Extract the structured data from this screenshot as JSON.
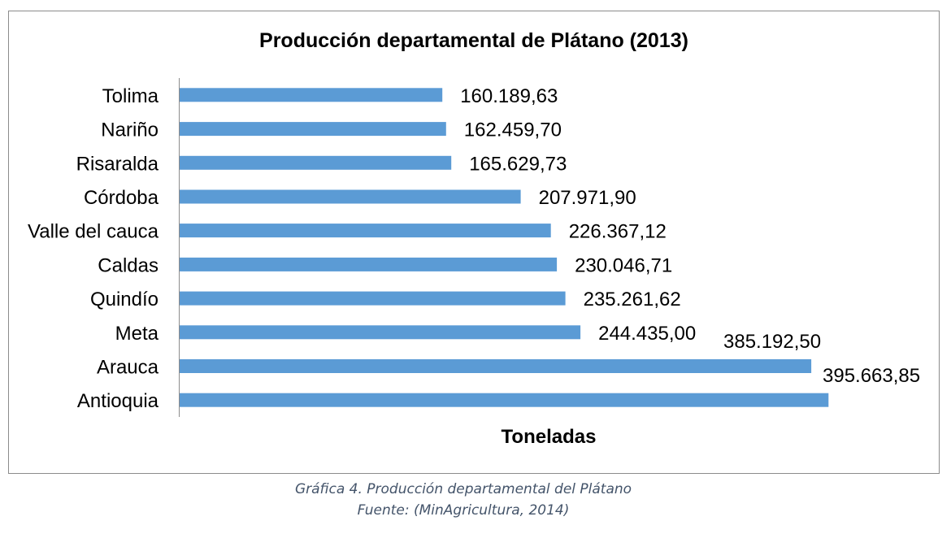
{
  "chart_data": {
    "type": "bar",
    "orientation": "horizontal",
    "title": "Producción departamental de Plátano (2013)",
    "xlabel": "Toneladas",
    "ylabel": "",
    "categories": [
      "Tolima",
      "Nariño",
      "Risaralda",
      "Córdoba",
      "Valle del cauca",
      "Caldas",
      "Quindío",
      "Meta",
      "Arauca",
      "Antioquia"
    ],
    "values": [
      160189.63,
      162459.7,
      165629.73,
      207971.9,
      226367.12,
      230046.71,
      235261.62,
      244435.0,
      385192.5,
      395663.85
    ],
    "data_labels": [
      "160.189,63",
      "162.459,70",
      "165.629,73",
      "207.971,90",
      "226.367,12",
      "230.046,71",
      "235.261,62",
      "244.435,00",
      "385.192,50",
      "395.663,85"
    ],
    "xlim": [
      0,
      400000
    ],
    "bar_color": "#5b9bd5",
    "grid": false,
    "legend": "none"
  },
  "captions": {
    "line1": "Gráfica 4. Producción departamental del Plátano",
    "line2": "Fuente: (MinAgricultura, 2014)"
  }
}
